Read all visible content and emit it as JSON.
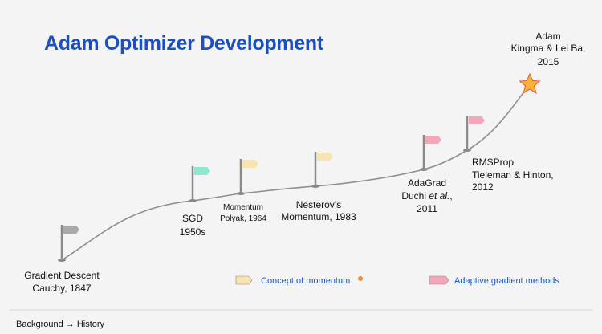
{
  "header": {
    "title": "Adam Optimizer Development"
  },
  "nodes": [
    {
      "lines": [
        "Gradient Descent",
        "Cauchy, 1847"
      ]
    },
    {
      "lines": [
        "SGD",
        "1950s"
      ]
    },
    {
      "lines": [
        "Momentum",
        "Polyak, 1964"
      ]
    },
    {
      "lines": [
        "Nesterov’s",
        "Momentum, 1983"
      ]
    },
    {
      "lines": [
        "AdaGrad",
        [
          "Duchi ",
          "et al.",
          ","
        ],
        "2011"
      ]
    },
    {
      "lines": [
        "RMSProp",
        "Tieleman & Hinton,",
        "2012"
      ]
    },
    {
      "lines": [
        "Adam",
        "Kingma & Lei Ba,",
        "2015"
      ]
    }
  ],
  "legend": [
    "Concept of momentum",
    "Adaptive gradient methods"
  ],
  "footer": {
    "breadcrumb": "Background → History"
  }
}
